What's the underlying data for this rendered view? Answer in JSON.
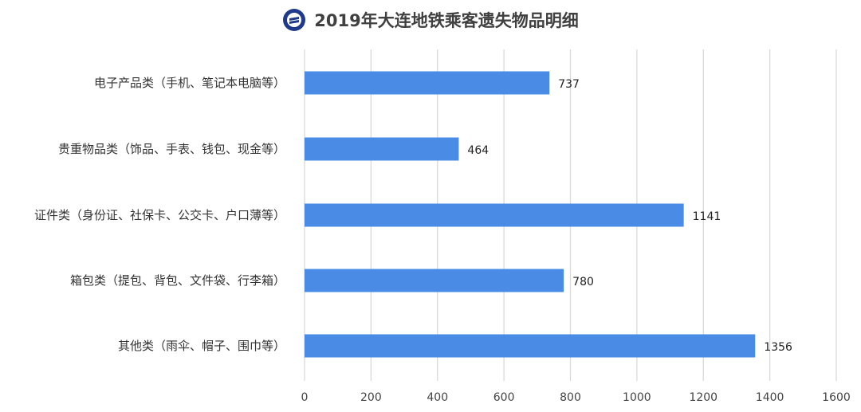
{
  "title": "2019年大连地铁乘客遗失物品明细",
  "logo_icon": "dalian-metro-logo-icon",
  "colors": {
    "bar": "#4a8be6",
    "grid": "#d9d9d9",
    "logo": "#1f3a8a"
  },
  "chart_data": {
    "type": "bar",
    "orientation": "horizontal",
    "title": "2019年大连地铁乘客遗失物品明细",
    "categories": [
      "电子产品类（手机、笔记本电脑等）",
      "贵重物品类（饰品、手表、钱包、现金等）",
      "证件类（身份证、社保卡、公交卡、户口薄等）",
      "箱包类（提包、背包、文件袋、行李箱）",
      "其他类（雨伞、帽子、围巾等）"
    ],
    "values": [
      737,
      464,
      1141,
      780,
      1356
    ],
    "xlim": [
      0,
      1600
    ],
    "xticks": [
      0,
      200,
      400,
      600,
      800,
      1000,
      1200,
      1400,
      1600
    ],
    "grid": true,
    "legend": "none"
  }
}
